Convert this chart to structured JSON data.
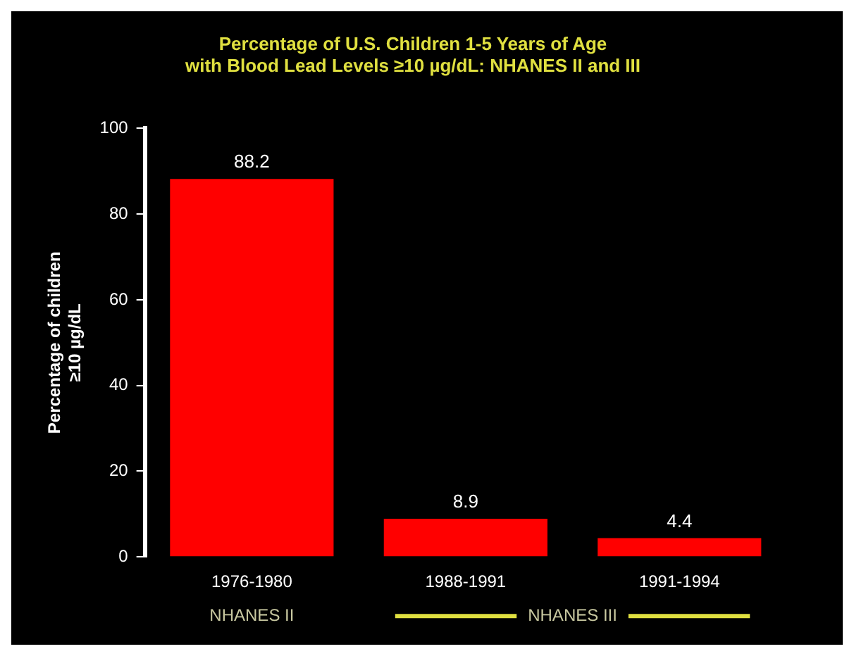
{
  "chart_data": {
    "type": "bar",
    "title": "Percentage of U.S. Children 1-5 Years of Age\nwith Blood Lead Levels ≥10 µg/dL: NHANES II and III",
    "ylabel": "Percentage of children\n≥10 µg/dL",
    "categories": [
      "1976-1980",
      "1988-1991",
      "1991-1994"
    ],
    "values": [
      88.2,
      8.9,
      4.4
    ],
    "color": "#ff0000",
    "ylim": [
      0,
      100
    ],
    "yticks": [
      0,
      20,
      40,
      60,
      80,
      100
    ],
    "data_labels": true,
    "grid": false,
    "legend": false,
    "annotations": [
      "NHANES II",
      "NHANES III"
    ]
  }
}
